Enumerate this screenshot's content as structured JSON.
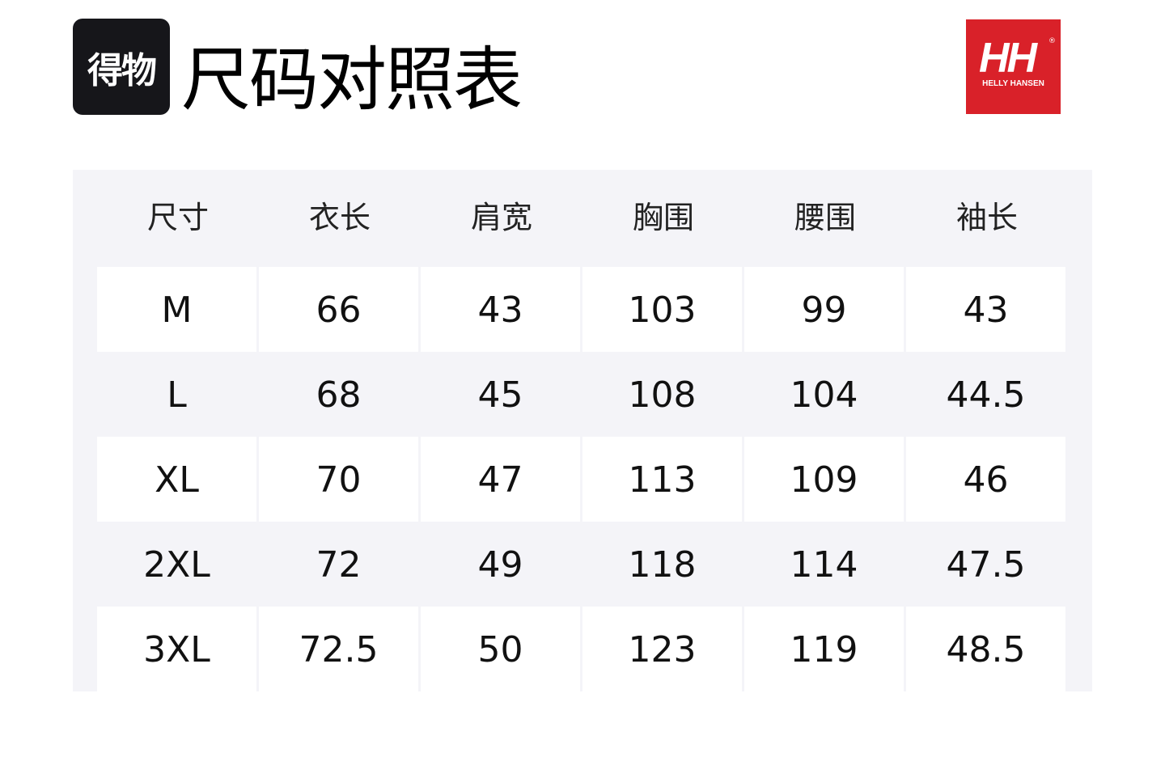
{
  "brand_logo_text": "得物",
  "title": "尺码对照表",
  "brand_right": {
    "mark": "HH",
    "name": "HELLY HANSEN",
    "color": "#d92129"
  },
  "table": {
    "headers": [
      "尺寸",
      "衣长",
      "肩宽",
      "胸围",
      "腰围",
      "袖长"
    ],
    "rows": [
      [
        "M",
        "66",
        "43",
        "103",
        "99",
        "43"
      ],
      [
        "L",
        "68",
        "45",
        "108",
        "104",
        "44.5"
      ],
      [
        "XL",
        "70",
        "47",
        "113",
        "109",
        "46"
      ],
      [
        "2XL",
        "72",
        "49",
        "118",
        "114",
        "47.5"
      ],
      [
        "3XL",
        "72.5",
        "50",
        "123",
        "119",
        "48.5"
      ]
    ]
  }
}
